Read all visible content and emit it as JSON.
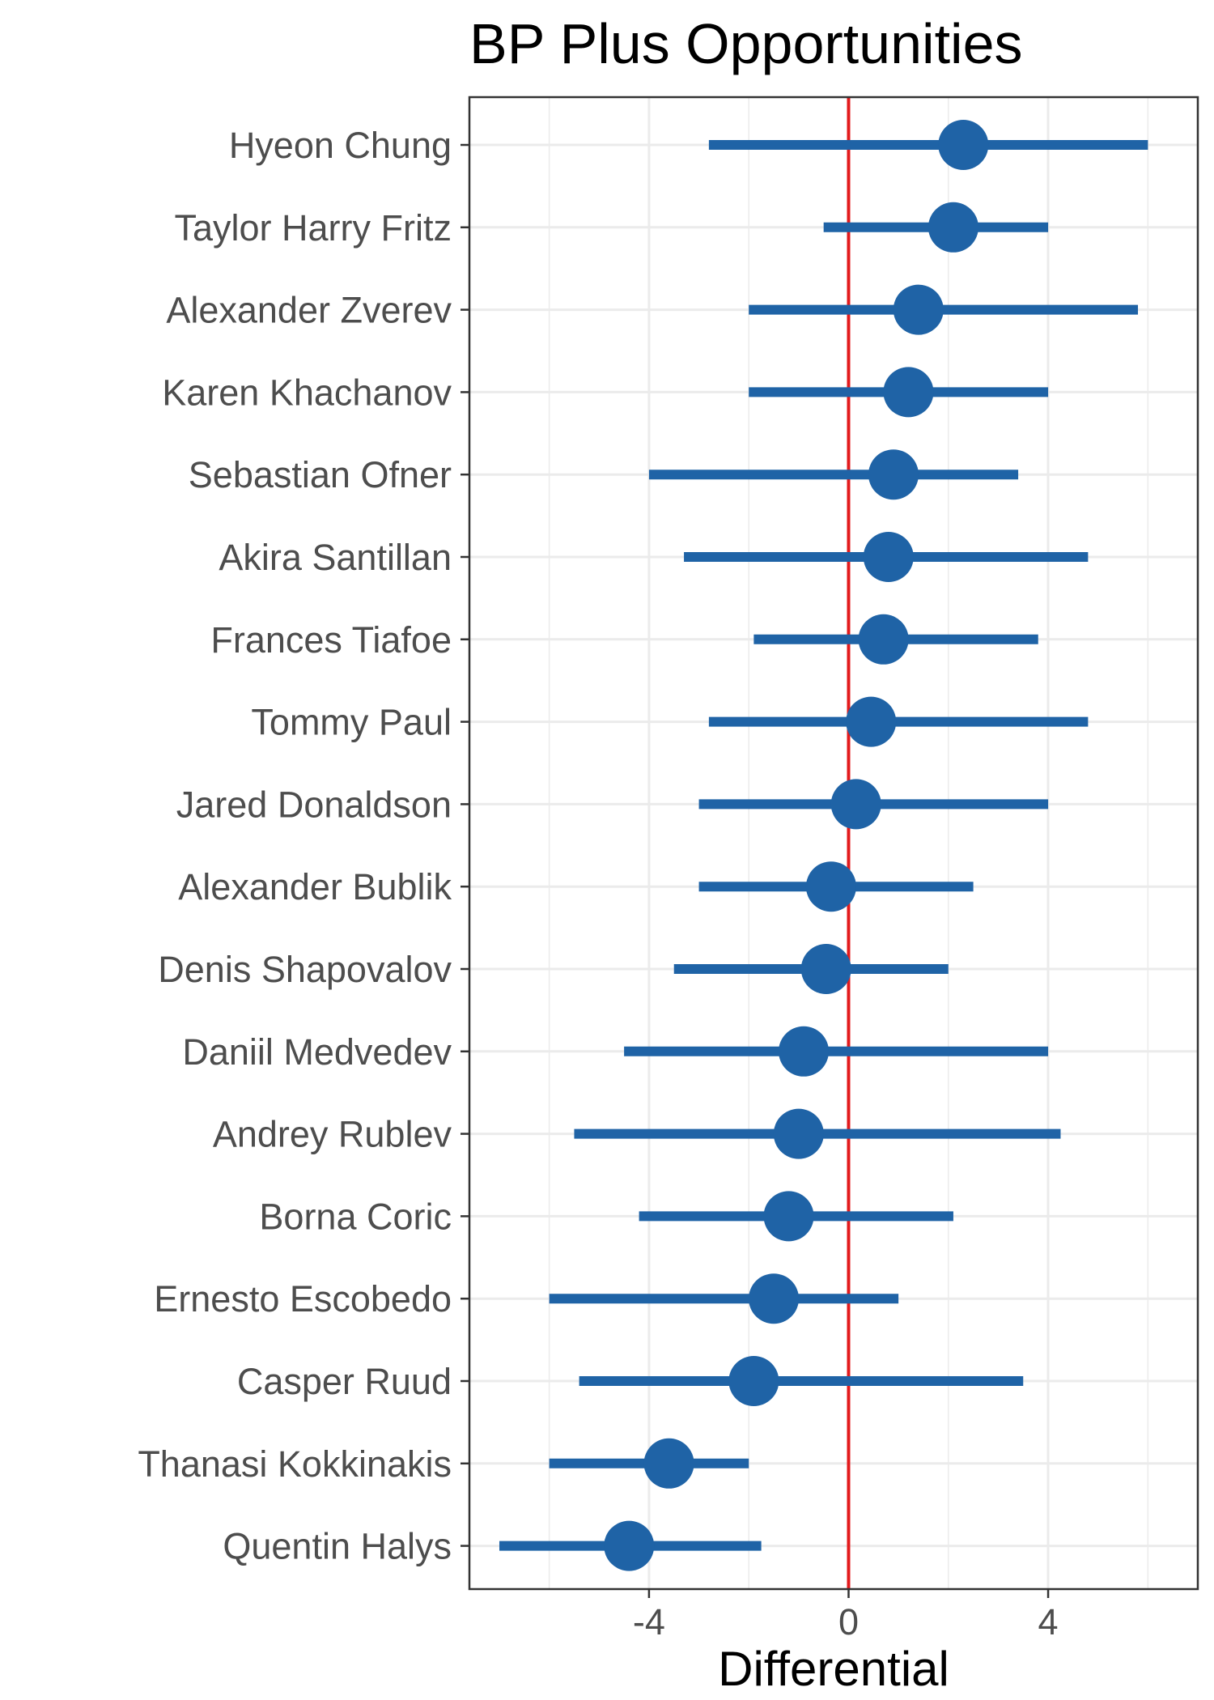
{
  "chart_data": {
    "type": "scatter",
    "subtype": "dot-with-interval",
    "title": "BP Plus Opportunities",
    "xlabel": "Differential",
    "ylabel": "",
    "xlim": [
      -7.6,
      7.0
    ],
    "x_ticks": [
      -4,
      0,
      4
    ],
    "x_tick_labels": [
      "-4",
      "0",
      "4"
    ],
    "reference_line": {
      "x": 0,
      "color": "#e31a1c"
    },
    "grid": true,
    "legend": "none",
    "colors": {
      "point": "#1f63a6",
      "interval": "#1f63a6",
      "grid": "#ebebeb",
      "panel_border": "#333333"
    },
    "players": [
      {
        "name": "Hyeon Chung",
        "estimate": 2.3,
        "low": -2.8,
        "high": 6.0
      },
      {
        "name": "Taylor Harry Fritz",
        "estimate": 2.1,
        "low": -0.5,
        "high": 4.0
      },
      {
        "name": "Alexander Zverev",
        "estimate": 1.4,
        "low": -2.0,
        "high": 5.8
      },
      {
        "name": "Karen Khachanov",
        "estimate": 1.2,
        "low": -2.0,
        "high": 4.0
      },
      {
        "name": "Sebastian Ofner",
        "estimate": 0.9,
        "low": -4.0,
        "high": 3.4
      },
      {
        "name": "Akira Santillan",
        "estimate": 0.8,
        "low": -3.3,
        "high": 4.8
      },
      {
        "name": "Frances Tiafoe",
        "estimate": 0.7,
        "low": -1.9,
        "high": 3.8
      },
      {
        "name": "Tommy Paul",
        "estimate": 0.45,
        "low": -2.8,
        "high": 4.8
      },
      {
        "name": "Jared Donaldson",
        "estimate": 0.15,
        "low": -3.0,
        "high": 4.0
      },
      {
        "name": "Alexander Bublik",
        "estimate": -0.35,
        "low": -3.0,
        "high": 2.5
      },
      {
        "name": "Denis Shapovalov",
        "estimate": -0.45,
        "low": -3.5,
        "high": 2.0
      },
      {
        "name": "Daniil Medvedev",
        "estimate": -0.9,
        "low": -4.5,
        "high": 4.0
      },
      {
        "name": "Andrey Rublev",
        "estimate": -1.0,
        "low": -5.5,
        "high": 4.25
      },
      {
        "name": "Borna Coric",
        "estimate": -1.2,
        "low": -4.2,
        "high": 2.1
      },
      {
        "name": "Ernesto Escobedo",
        "estimate": -1.5,
        "low": -6.0,
        "high": 1.0
      },
      {
        "name": "Casper Ruud",
        "estimate": -1.9,
        "low": -5.4,
        "high": 3.5
      },
      {
        "name": "Thanasi Kokkinakis",
        "estimate": -3.6,
        "low": -6.0,
        "high": -2.0
      },
      {
        "name": "Quentin Halys",
        "estimate": -4.4,
        "low": -7.0,
        "high": -1.75
      }
    ]
  }
}
